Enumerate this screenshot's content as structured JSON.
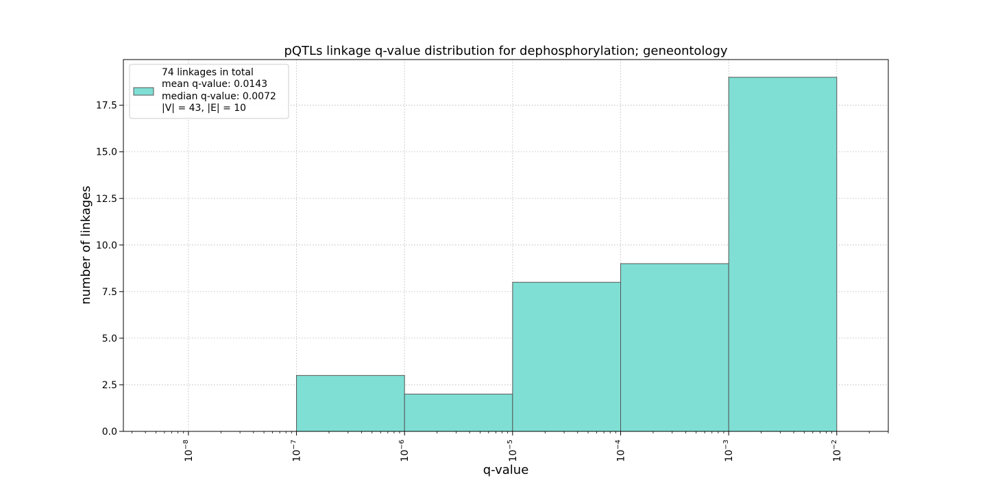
{
  "chart_data": {
    "type": "bar",
    "title": "pQTLs linkage q-value distribution for dephosphorylation; geneontology",
    "xlabel": "q-value",
    "ylabel": "number of linkages",
    "x_scale": "log",
    "xlim": [
      2.5e-09,
      0.03
    ],
    "ylim": [
      0,
      19.95
    ],
    "grid": true,
    "bar_color": "#7fdfd4",
    "edge_color": "#555555",
    "bins": [
      {
        "x0": 1e-07,
        "x1": 1e-06,
        "count": 3
      },
      {
        "x0": 1e-06,
        "x1": 1e-05,
        "count": 2
      },
      {
        "x0": 1e-05,
        "x1": 0.0001,
        "count": 8
      },
      {
        "x0": 0.0001,
        "x1": 0.001,
        "count": 9
      },
      {
        "x0": 0.001,
        "x1": 0.01,
        "count": 19
      }
    ],
    "x_ticks": [
      {
        "value": 1e-08,
        "base": "10",
        "exp": "−8"
      },
      {
        "value": 1e-07,
        "base": "10",
        "exp": "−7"
      },
      {
        "value": 1e-06,
        "base": "10",
        "exp": "−6"
      },
      {
        "value": 1e-05,
        "base": "10",
        "exp": "−5"
      },
      {
        "value": 0.0001,
        "base": "10",
        "exp": "−4"
      },
      {
        "value": 0.001,
        "base": "10",
        "exp": "−3"
      },
      {
        "value": 0.01,
        "base": "10",
        "exp": "−2"
      }
    ],
    "y_ticks": [
      {
        "value": 0,
        "label": "0.0"
      },
      {
        "value": 2.5,
        "label": "2.5"
      },
      {
        "value": 5,
        "label": "5.0"
      },
      {
        "value": 7.5,
        "label": "7.5"
      },
      {
        "value": 10,
        "label": "10.0"
      },
      {
        "value": 12.5,
        "label": "12.5"
      },
      {
        "value": 15,
        "label": "15.0"
      },
      {
        "value": 17.5,
        "label": "17.5"
      }
    ],
    "legend": {
      "placement": "top-left",
      "lines": [
        "74 linkages in total",
        "mean q-value: 0.0143",
        "median q-value: 0.0072",
        "|V| = 43, |E| = 10"
      ]
    }
  }
}
